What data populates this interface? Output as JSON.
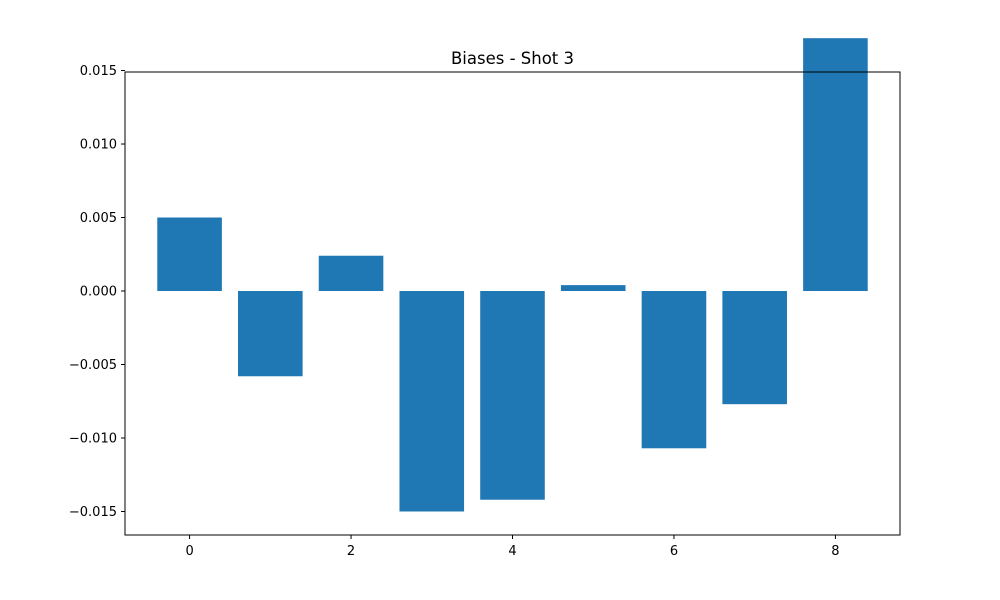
{
  "chart_data": {
    "type": "bar",
    "title": "Biases - Shot 3",
    "xlabel": "",
    "ylabel": "",
    "categories": [
      0,
      1,
      2,
      3,
      4,
      5,
      6,
      7,
      8
    ],
    "values": [
      0.005,
      -0.0058,
      0.0024,
      -0.015,
      -0.0142,
      0.0004,
      -0.0107,
      -0.0077,
      0.0172
    ],
    "bar_color": "#1f77b4",
    "xlim": [
      -0.8,
      8.8
    ],
    "ylim": [
      -0.0166,
      0.0149
    ],
    "xticks": [
      0,
      2,
      4,
      6,
      8
    ],
    "xtick_labels": [
      "0",
      "2",
      "4",
      "6",
      "8"
    ],
    "yticks": [
      -0.015,
      -0.01,
      -0.005,
      0.0,
      0.005,
      0.01,
      0.015
    ],
    "ytick_labels": [
      "−0.015",
      "−0.010",
      "−0.005",
      "0.000",
      "0.005",
      "0.010",
      "0.015"
    ],
    "grid": false,
    "legend": "none"
  }
}
